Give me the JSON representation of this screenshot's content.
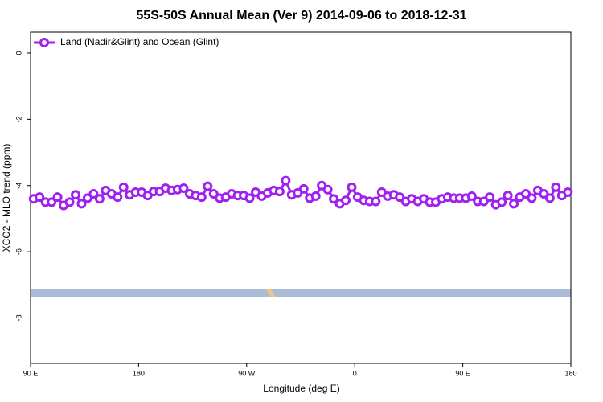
{
  "chart_data": {
    "type": "line",
    "title": "55S-50S Annual Mean (Ver 9)   2014-09-06 to 2018-12-31",
    "x_label": "Longitude (deg E)",
    "y_label": "XCO2 - MLO trend (ppm)",
    "legend_position": "top-left",
    "x": [
      92.5,
      97.5,
      102.5,
      107.5,
      112.5,
      117.5,
      122.5,
      127.5,
      132.5,
      137.5,
      142.5,
      147.5,
      152.5,
      157.5,
      162.5,
      167.5,
      172.5,
      177.5,
      182.5,
      187.5,
      192.5,
      197.5,
      202.5,
      207.5,
      212.5,
      217.5,
      222.5,
      227.5,
      232.5,
      237.5,
      242.5,
      247.5,
      252.5,
      257.5,
      262.5,
      267.5,
      272.5,
      277.5,
      282.5,
      287.5,
      292.5,
      297.5,
      302.5,
      307.5,
      312.5,
      317.5,
      322.5,
      327.5,
      332.5,
      337.5,
      342.5,
      347.5,
      352.5,
      357.5,
      362.5,
      367.5,
      372.5,
      377.5,
      382.5,
      387.5,
      392.5,
      397.5,
      402.5,
      407.5,
      412.5,
      417.5,
      422.5,
      427.5,
      432.5,
      437.5,
      442.5,
      447.5,
      452.5,
      457.5,
      462.5,
      467.5,
      472.5,
      477.5,
      482.5,
      487.5,
      492.5,
      497.5,
      502.5,
      507.5,
      512.5,
      517.5,
      522.5,
      527.5,
      532.5,
      537.5
    ],
    "series": [
      {
        "name": "Land (Nadir&Glint) and Ocean (Glint)",
        "color": "#a020f0",
        "values": [
          -4.4,
          -4.35,
          -4.5,
          -4.5,
          -4.35,
          -4.6,
          -4.5,
          -4.28,
          -4.55,
          -4.38,
          -4.25,
          -4.4,
          -4.15,
          -4.25,
          -4.35,
          -4.05,
          -4.28,
          -4.2,
          -4.2,
          -4.3,
          -4.18,
          -4.18,
          -4.08,
          -4.15,
          -4.12,
          -4.08,
          -4.25,
          -4.3,
          -4.35,
          -4.02,
          -4.25,
          -4.38,
          -4.35,
          -4.25,
          -4.3,
          -4.3,
          -4.38,
          -4.2,
          -4.32,
          -4.22,
          -4.15,
          -4.18,
          -3.85,
          -4.28,
          -4.22,
          -4.1,
          -4.38,
          -4.32,
          -4.0,
          -4.12,
          -4.4,
          -4.55,
          -4.45,
          -4.05,
          -4.35,
          -4.45,
          -4.48,
          -4.48,
          -4.2,
          -4.32,
          -4.28,
          -4.35,
          -4.48,
          -4.4,
          -4.48,
          -4.4,
          -4.5,
          -4.5,
          -4.4,
          -4.35,
          -4.38,
          -4.38,
          -4.38,
          -4.32,
          -4.48,
          -4.48,
          -4.35,
          -4.58,
          -4.5,
          -4.3,
          -4.55,
          -4.35,
          -4.25,
          -4.38,
          -4.15,
          -4.25,
          -4.38,
          -4.05,
          -4.3,
          -4.2
        ]
      }
    ],
    "xlim": [
      90,
      540
    ],
    "xticks": [
      {
        "value": 90,
        "label": "90 E"
      },
      180,
      {
        "value": 270,
        "label": "90 W"
      },
      {
        "value": 360,
        "label": "0"
      },
      {
        "value": 450,
        "label": "90 E"
      },
      {
        "value": 540,
        "label": "180"
      }
    ],
    "ylim": [
      -9.37,
      0.63
    ],
    "yticks": [
      0,
      -2,
      -4,
      -6,
      -8
    ]
  }
}
